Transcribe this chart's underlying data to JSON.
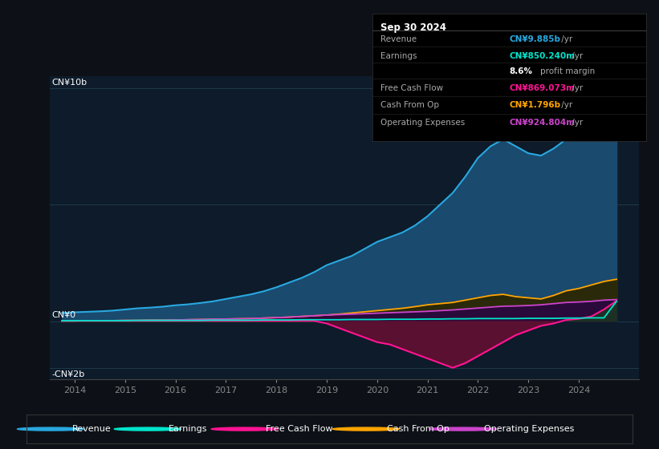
{
  "bg_color": "#0d1117",
  "plot_bg_color": "#0d1b2a",
  "years": [
    2013.75,
    2014.0,
    2014.25,
    2014.5,
    2014.75,
    2015.0,
    2015.25,
    2015.5,
    2015.75,
    2016.0,
    2016.25,
    2016.5,
    2016.75,
    2017.0,
    2017.25,
    2017.5,
    2017.75,
    2018.0,
    2018.25,
    2018.5,
    2018.75,
    2019.0,
    2019.25,
    2019.5,
    2019.75,
    2020.0,
    2020.25,
    2020.5,
    2020.75,
    2021.0,
    2021.25,
    2021.5,
    2021.75,
    2022.0,
    2022.25,
    2022.5,
    2022.75,
    2023.0,
    2023.25,
    2023.5,
    2023.75,
    2024.0,
    2024.25,
    2024.5,
    2024.75
  ],
  "revenue": [
    0.35,
    0.38,
    0.4,
    0.42,
    0.45,
    0.5,
    0.55,
    0.58,
    0.62,
    0.68,
    0.72,
    0.78,
    0.85,
    0.95,
    1.05,
    1.15,
    1.28,
    1.45,
    1.65,
    1.85,
    2.1,
    2.4,
    2.6,
    2.8,
    3.1,
    3.4,
    3.6,
    3.8,
    4.1,
    4.5,
    5.0,
    5.5,
    6.2,
    7.0,
    7.5,
    7.8,
    7.5,
    7.2,
    7.1,
    7.4,
    7.8,
    8.2,
    8.8,
    9.5,
    9.885
  ],
  "earnings": [
    0.02,
    0.02,
    0.02,
    0.02,
    0.02,
    0.02,
    0.03,
    0.03,
    0.03,
    0.03,
    0.03,
    0.03,
    0.04,
    0.04,
    0.04,
    0.04,
    0.05,
    0.05,
    0.05,
    0.06,
    0.06,
    0.06,
    0.06,
    0.07,
    0.07,
    0.07,
    0.08,
    0.08,
    0.08,
    0.09,
    0.09,
    0.1,
    0.1,
    0.11,
    0.11,
    0.11,
    0.11,
    0.12,
    0.12,
    0.12,
    0.13,
    0.13,
    0.14,
    0.14,
    0.85
  ],
  "free_cash_flow": [
    0.01,
    0.01,
    0.01,
    0.01,
    0.01,
    0.01,
    0.01,
    0.01,
    0.01,
    0.01,
    0.01,
    0.01,
    0.01,
    0.01,
    0.01,
    0.01,
    0.01,
    0.01,
    0.01,
    0.01,
    0.01,
    -0.1,
    -0.3,
    -0.5,
    -0.7,
    -0.9,
    -1.0,
    -1.2,
    -1.4,
    -1.6,
    -1.8,
    -2.0,
    -1.8,
    -1.5,
    -1.2,
    -0.9,
    -0.6,
    -0.4,
    -0.2,
    -0.1,
    0.05,
    0.1,
    0.2,
    0.5,
    0.869
  ],
  "cash_from_op": [
    0.01,
    0.01,
    0.02,
    0.02,
    0.02,
    0.03,
    0.03,
    0.04,
    0.04,
    0.05,
    0.06,
    0.07,
    0.08,
    0.09,
    0.1,
    0.11,
    0.13,
    0.15,
    0.17,
    0.2,
    0.23,
    0.26,
    0.3,
    0.35,
    0.4,
    0.45,
    0.5,
    0.55,
    0.62,
    0.7,
    0.75,
    0.8,
    0.9,
    1.0,
    1.1,
    1.15,
    1.05,
    1.0,
    0.95,
    1.1,
    1.3,
    1.4,
    1.55,
    1.7,
    1.796
  ],
  "operating_expenses": [
    0.01,
    0.01,
    0.02,
    0.02,
    0.02,
    0.03,
    0.03,
    0.04,
    0.04,
    0.05,
    0.06,
    0.07,
    0.08,
    0.09,
    0.1,
    0.11,
    0.13,
    0.15,
    0.17,
    0.2,
    0.23,
    0.26,
    0.28,
    0.3,
    0.32,
    0.34,
    0.36,
    0.38,
    0.4,
    0.42,
    0.45,
    0.48,
    0.52,
    0.56,
    0.6,
    0.64,
    0.65,
    0.67,
    0.7,
    0.75,
    0.8,
    0.82,
    0.85,
    0.9,
    0.9248
  ],
  "revenue_color": "#29a8e0",
  "revenue_fill": "#1a4a6e",
  "earnings_color": "#00e5cc",
  "fcf_color": "#ff1493",
  "fcf_fill": "#5a1030",
  "cashop_color": "#ffa500",
  "cashop_fill": "#2a2a0a",
  "opex_color": "#cc44cc",
  "opex_fill": "#2a0a3a",
  "ylim": [
    -2.5,
    10.5
  ],
  "grid_lines": [
    -2.0,
    0.0,
    5.0,
    10.0
  ],
  "xlim": [
    2013.5,
    2025.2
  ],
  "xticks": [
    2014,
    2015,
    2016,
    2017,
    2018,
    2019,
    2020,
    2021,
    2022,
    2023,
    2024
  ],
  "info_box": {
    "date": "Sep 30 2024",
    "rows": [
      {
        "label": "Revenue",
        "value": "CN¥9.885b",
        "suffix": " /yr",
        "color": "#29a8e0"
      },
      {
        "label": "Earnings",
        "value": "CN¥850.240m",
        "suffix": " /yr",
        "color": "#00e5cc"
      },
      {
        "label": "",
        "value": "8.6%",
        "suffix": " profit margin",
        "color": "#ffffff"
      },
      {
        "label": "Free Cash Flow",
        "value": "CN¥869.073m",
        "suffix": " /yr",
        "color": "#ff1493"
      },
      {
        "label": "Cash From Op",
        "value": "CN¥1.796b",
        "suffix": " /yr",
        "color": "#ffa500"
      },
      {
        "label": "Operating Expenses",
        "value": "CN¥924.804m",
        "suffix": " /yr",
        "color": "#cc44cc"
      }
    ]
  },
  "legend_items": [
    {
      "label": "Revenue",
      "color": "#29a8e0"
    },
    {
      "label": "Earnings",
      "color": "#00e5cc"
    },
    {
      "label": "Free Cash Flow",
      "color": "#ff1493"
    },
    {
      "label": "Cash From Op",
      "color": "#ffa500"
    },
    {
      "label": "Operating Expenses",
      "color": "#cc44cc"
    }
  ]
}
